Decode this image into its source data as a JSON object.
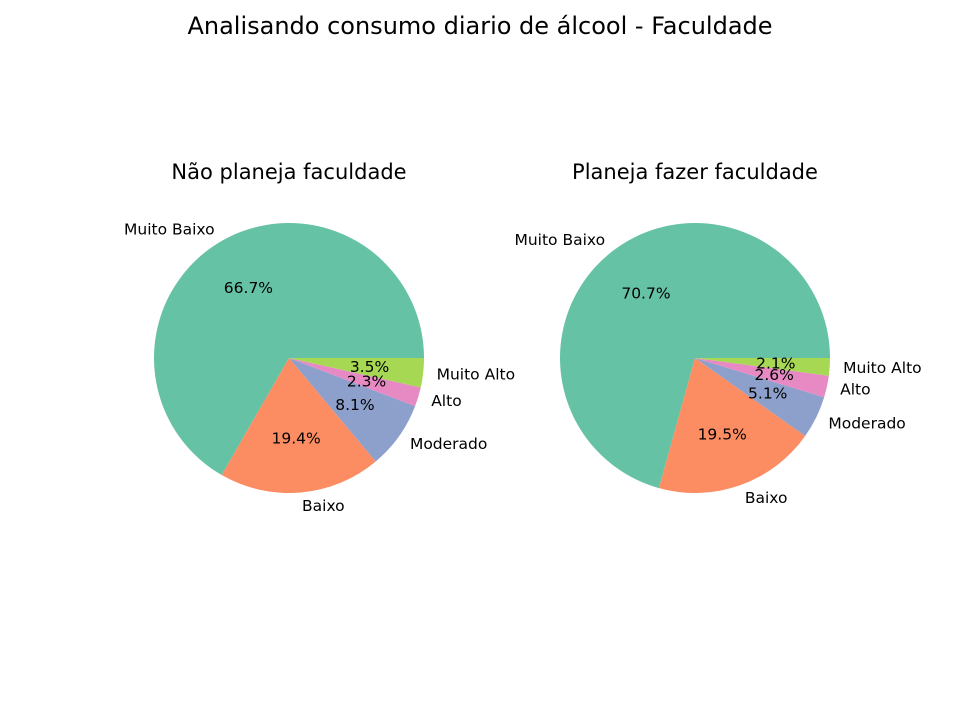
{
  "figure": {
    "title": "Analisando consumo diario de álcool - Faculdade"
  },
  "chart_data": [
    {
      "type": "pie",
      "title": "Não planeja faculdade",
      "categories": [
        "Muito Baixo",
        "Baixo",
        "Moderado",
        "Alto",
        "Muito Alto"
      ],
      "values": [
        66.7,
        19.4,
        8.1,
        2.3,
        3.5
      ],
      "value_labels": [
        "66.7%",
        "19.4%",
        "8.1%",
        "2.3%",
        "3.5%"
      ],
      "colors": [
        "#66c2a5",
        "#fc8d62",
        "#8da0cb",
        "#e78ac3",
        "#a6d854"
      ],
      "start_angle": 0,
      "direction": "counterclockwise",
      "legend": "none"
    },
    {
      "type": "pie",
      "title": "Planeja fazer faculdade",
      "categories": [
        "Muito Baixo",
        "Baixo",
        "Moderado",
        "Alto",
        "Muito Alto"
      ],
      "values": [
        70.7,
        19.5,
        5.1,
        2.6,
        2.1
      ],
      "value_labels": [
        "70.7%",
        "19.5%",
        "5.1%",
        "2.6%",
        "2.1%"
      ],
      "colors": [
        "#66c2a5",
        "#fc8d62",
        "#8da0cb",
        "#e78ac3",
        "#a6d854"
      ],
      "start_angle": 0,
      "direction": "counterclockwise",
      "legend": "none"
    }
  ]
}
